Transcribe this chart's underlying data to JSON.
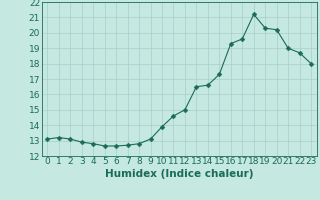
{
  "x": [
    0,
    1,
    2,
    3,
    4,
    5,
    6,
    7,
    8,
    9,
    10,
    11,
    12,
    13,
    14,
    15,
    16,
    17,
    18,
    19,
    20,
    21,
    22,
    23
  ],
  "y": [
    13.1,
    13.2,
    13.1,
    12.9,
    12.8,
    12.65,
    12.65,
    12.7,
    12.8,
    13.1,
    13.9,
    14.6,
    15.0,
    16.5,
    16.6,
    17.3,
    19.3,
    19.6,
    21.2,
    20.3,
    20.2,
    19.0,
    18.7,
    18.0
  ],
  "line_color": "#1a6b5a",
  "marker": "D",
  "marker_size": 2.5,
  "bg_color": "#c5e8e0",
  "grid_color": "#a8cfc8",
  "axis_color": "#1a6b5a",
  "xlabel": "Humidex (Indice chaleur)",
  "ylim": [
    12,
    22
  ],
  "xlim": [
    -0.5,
    23.5
  ],
  "yticks": [
    12,
    13,
    14,
    15,
    16,
    17,
    18,
    19,
    20,
    21,
    22
  ],
  "xticks": [
    0,
    1,
    2,
    3,
    4,
    5,
    6,
    7,
    8,
    9,
    10,
    11,
    12,
    13,
    14,
    15,
    16,
    17,
    18,
    19,
    20,
    21,
    22,
    23
  ],
  "font_size": 6.5,
  "xlabel_fontsize": 7.5
}
